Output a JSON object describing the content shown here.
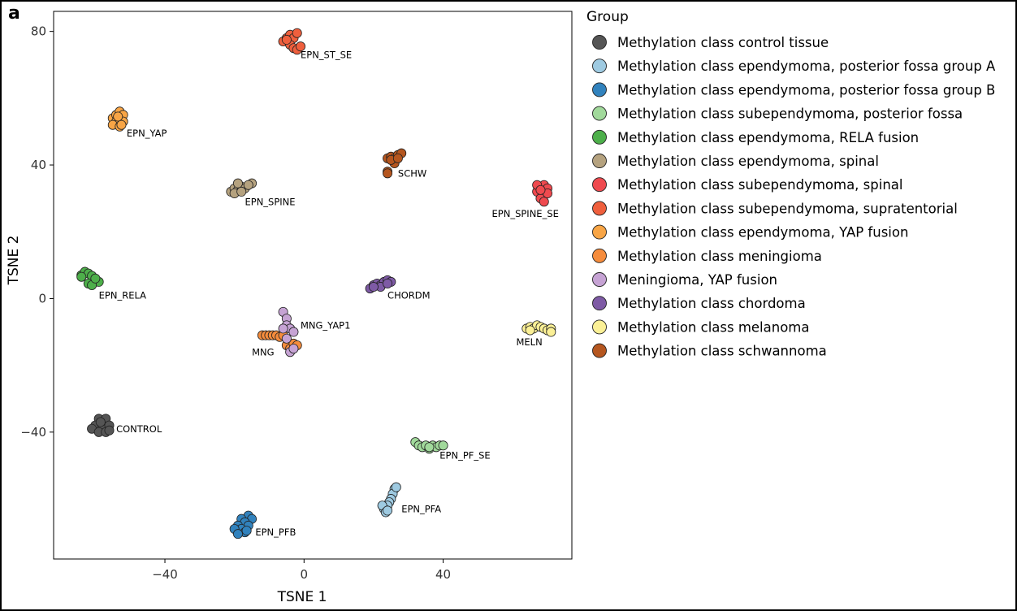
{
  "panel_label": "a",
  "chart_data": {
    "type": "scatter",
    "xlabel": "TSNE 1",
    "ylabel": "TSNE 2",
    "xlim": [
      -72,
      77
    ],
    "ylim": [
      -78,
      86
    ],
    "xticks": [
      -40,
      0,
      40
    ],
    "yticks": [
      -40,
      0,
      40,
      80
    ],
    "grid": false,
    "legend": {
      "title": "Group",
      "placement": "right",
      "entries": [
        {
          "label": "Methylation class control tissue",
          "color": "#555555"
        },
        {
          "label": "Methylation class ependymoma, posterior fossa group A",
          "color": "#9ecae1"
        },
        {
          "label": "Methylation class ependymoma, posterior fossa group B",
          "color": "#3182bd"
        },
        {
          "label": "Methylation class subependymoma, posterior fossa",
          "color": "#a1d99b"
        },
        {
          "label": "Methylation class ependymoma, RELA fusion",
          "color": "#4daf4a"
        },
        {
          "label": "Methylation class ependymoma, spinal",
          "color": "#b5a27f"
        },
        {
          "label": "Methylation class subependymoma, spinal",
          "color": "#ef4a4f"
        },
        {
          "label": "Methylation class subependymoma, supratentorial",
          "color": "#ef5f3d"
        },
        {
          "label": "Methylation class ependymoma, YAP fusion",
          "color": "#f8a546"
        },
        {
          "label": "Methylation class meningioma",
          "color": "#f58c3c"
        },
        {
          "label": "Meningioma, YAP fusion",
          "color": "#c6a3d4"
        },
        {
          "label": "Methylation class chordoma",
          "color": "#7e5aa5"
        },
        {
          "label": "Methylation class melanoma",
          "color": "#fbf096"
        },
        {
          "label": "Methylation class schwannoma",
          "color": "#b5561f"
        }
      ]
    },
    "series": [
      {
        "name": "Methylation class control tissue",
        "label": "CONTROL",
        "label_pos": [
          -54,
          -40
        ],
        "points": [
          [
            -59,
            -36
          ],
          [
            -57,
            -36
          ],
          [
            -60,
            -38
          ],
          [
            -58,
            -38
          ],
          [
            -56,
            -38
          ],
          [
            -61,
            -39
          ],
          [
            -59,
            -40
          ],
          [
            -57,
            -40
          ],
          [
            -56,
            -39.5
          ],
          [
            -58.5,
            -37
          ]
        ]
      },
      {
        "name": "Methylation class ependymoma, posterior fossa group A",
        "label": "EPN_PFA",
        "label_pos": [
          28,
          -64
        ],
        "points": [
          [
            26,
            -57
          ],
          [
            25.5,
            -58.5
          ],
          [
            25,
            -60
          ],
          [
            24.5,
            -61
          ],
          [
            24,
            -62
          ],
          [
            23,
            -63
          ],
          [
            22.5,
            -62
          ],
          [
            23.5,
            -64
          ],
          [
            24,
            -63.5
          ],
          [
            26.5,
            -56.5
          ]
        ]
      },
      {
        "name": "Methylation class ependymoma, posterior fossa group B",
        "label": "EPN_PFB",
        "label_pos": [
          -14,
          -71
        ],
        "points": [
          [
            -16,
            -65
          ],
          [
            -18,
            -66
          ],
          [
            -15,
            -66
          ],
          [
            -17,
            -67
          ],
          [
            -19,
            -68
          ],
          [
            -16,
            -68
          ],
          [
            -18,
            -69
          ],
          [
            -20,
            -69
          ],
          [
            -17,
            -70
          ],
          [
            -19,
            -70.5
          ],
          [
            -16.5,
            -69.5
          ]
        ]
      },
      {
        "name": "Methylation class subependymoma, posterior fossa",
        "label": "EPN_PF_SE",
        "label_pos": [
          39,
          -48
        ],
        "points": [
          [
            32,
            -43
          ],
          [
            33,
            -44
          ],
          [
            34,
            -44.5
          ],
          [
            35,
            -44
          ],
          [
            36,
            -45
          ],
          [
            37,
            -44
          ],
          [
            38,
            -44.5
          ],
          [
            39,
            -44
          ],
          [
            40,
            -44
          ],
          [
            36,
            -44.5
          ]
        ]
      },
      {
        "name": "Methylation class ependymoma, RELA fusion",
        "label": "EPN_RELA",
        "label_pos": [
          -59,
          0
        ],
        "points": [
          [
            -64,
            7
          ],
          [
            -63,
            8
          ],
          [
            -62,
            7.5
          ],
          [
            -64,
            6.5
          ],
          [
            -61,
            6.8
          ],
          [
            -60,
            5
          ],
          [
            -62,
            4.5
          ],
          [
            -59,
            5
          ],
          [
            -61,
            4
          ],
          [
            -60,
            6
          ]
        ]
      },
      {
        "name": "Methylation class ependymoma, spinal",
        "label": "EPN_SPINE",
        "label_pos": [
          -17,
          28
        ],
        "points": [
          [
            -21,
            32
          ],
          [
            -20,
            33
          ],
          [
            -19,
            32.5
          ],
          [
            -18,
            33.5
          ],
          [
            -17,
            33
          ],
          [
            -15,
            34.5
          ],
          [
            -19,
            34.5
          ],
          [
            -16,
            34
          ],
          [
            -20,
            31.5
          ],
          [
            -18,
            32
          ]
        ]
      },
      {
        "name": "Methylation class subependymoma, spinal",
        "label": "EPN_SPINE_SE",
        "label_pos": [
          54,
          24.5
        ],
        "points": [
          [
            67,
            32
          ],
          [
            68,
            33
          ],
          [
            69,
            34
          ],
          [
            70,
            33
          ],
          [
            69,
            31
          ],
          [
            68,
            30
          ],
          [
            69,
            29
          ],
          [
            70,
            31.5
          ],
          [
            67,
            34
          ],
          [
            68,
            32.5
          ]
        ]
      },
      {
        "name": "Methylation class subependymoma, supratentorial",
        "label": "EPN_ST_SE",
        "label_pos": [
          -1,
          72
        ],
        "points": [
          [
            -6,
            77
          ],
          [
            -5,
            78
          ],
          [
            -4,
            79
          ],
          [
            -3,
            78
          ],
          [
            -2,
            79.5
          ],
          [
            -4,
            76
          ],
          [
            -3,
            75
          ],
          [
            -2,
            74.5
          ],
          [
            -1,
            75.5
          ],
          [
            -5,
            77.5
          ]
        ]
      },
      {
        "name": "Methylation class ependymoma, YAP fusion",
        "label": "EPN_YAP",
        "label_pos": [
          -51,
          48.5
        ],
        "points": [
          [
            -55,
            54
          ],
          [
            -54,
            55
          ],
          [
            -53,
            56
          ],
          [
            -52,
            55
          ],
          [
            -54,
            53
          ],
          [
            -55,
            52
          ],
          [
            -53,
            51.5
          ],
          [
            -52,
            53
          ],
          [
            -53.5,
            54.5
          ],
          [
            -52.5,
            52
          ]
        ]
      },
      {
        "name": "Methylation class meningioma",
        "label": "MNG",
        "label_pos": [
          -15,
          -17
        ],
        "points": [
          [
            -12,
            -11
          ],
          [
            -11,
            -11
          ],
          [
            -10,
            -11
          ],
          [
            -9,
            -11
          ],
          [
            -8,
            -11
          ],
          [
            -7,
            -11.5
          ],
          [
            -6,
            -11
          ],
          [
            -5,
            -14
          ],
          [
            -4,
            -15
          ],
          [
            -3,
            -13.5
          ],
          [
            -2,
            -14
          ]
        ]
      },
      {
        "name": "Meningioma, YAP fusion",
        "label": "MNG_YAP1",
        "label_pos": [
          -1,
          -9
        ],
        "points": [
          [
            -6,
            -4
          ],
          [
            -5,
            -6
          ],
          [
            -5,
            -8
          ],
          [
            -4,
            -9
          ],
          [
            -3,
            -10
          ],
          [
            -6,
            -9
          ],
          [
            -4,
            -16
          ],
          [
            -5,
            -12
          ],
          [
            -3,
            -15
          ]
        ]
      },
      {
        "name": "Methylation class chordoma",
        "label": "CHORDM",
        "label_pos": [
          24,
          0
        ],
        "points": [
          [
            19,
            3
          ],
          [
            20,
            4
          ],
          [
            21,
            4.5
          ],
          [
            22,
            4
          ],
          [
            23,
            5
          ],
          [
            24,
            5.5
          ],
          [
            25,
            5
          ],
          [
            22,
            3.5
          ],
          [
            20,
            3.5
          ],
          [
            24,
            4.5
          ]
        ]
      },
      {
        "name": "Methylation class melanoma",
        "label": "MELN",
        "label_pos": [
          61,
          -14
        ],
        "points": [
          [
            64,
            -9
          ],
          [
            65,
            -8.5
          ],
          [
            66,
            -9
          ],
          [
            67,
            -8
          ],
          [
            68,
            -8.5
          ],
          [
            69,
            -9
          ],
          [
            70,
            -9.5
          ],
          [
            71,
            -9
          ],
          [
            71,
            -10
          ],
          [
            65,
            -9.5
          ]
        ]
      },
      {
        "name": "Methylation class schwannoma",
        "label": "SCHW",
        "label_pos": [
          27,
          36.5
        ],
        "points": [
          [
            24,
            42
          ],
          [
            25,
            42.5
          ],
          [
            26,
            42
          ],
          [
            27,
            43
          ],
          [
            28,
            43.5
          ],
          [
            26,
            40.5
          ],
          [
            24,
            38
          ],
          [
            24,
            37.5
          ],
          [
            25,
            41.5
          ],
          [
            27,
            42
          ]
        ]
      }
    ]
  }
}
